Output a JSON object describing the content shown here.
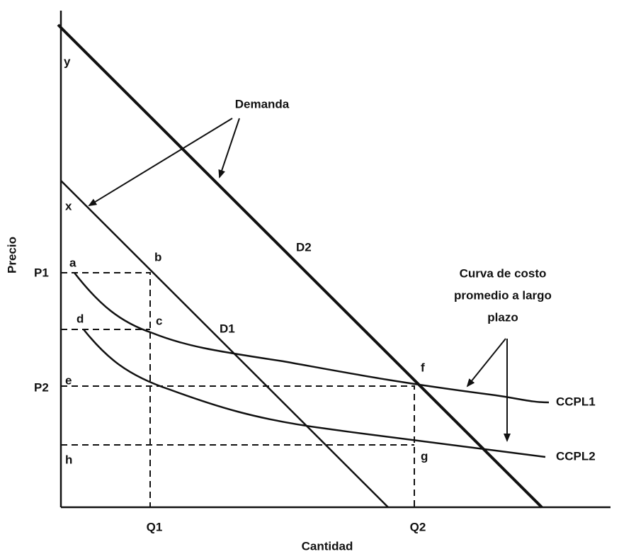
{
  "axes": {
    "y_label": "Precio",
    "x_label": "Cantidad"
  },
  "ticks": {
    "p1": "P1",
    "p2": "P2",
    "q1": "Q1",
    "q2": "Q2"
  },
  "points": {
    "y": "y",
    "x": "x",
    "a": "a",
    "b": "b",
    "c": "c",
    "d": "d",
    "e": "e",
    "f": "f",
    "g": "g",
    "h": "h"
  },
  "curves": {
    "d1": "D1",
    "d2": "D2",
    "ccpl1": "CCPL1",
    "ccpl2": "CCPL2"
  },
  "annotations": {
    "demand": "Demanda",
    "cost_curve": [
      "Curva de costo",
      "promedio a largo",
      "plazo"
    ]
  }
}
